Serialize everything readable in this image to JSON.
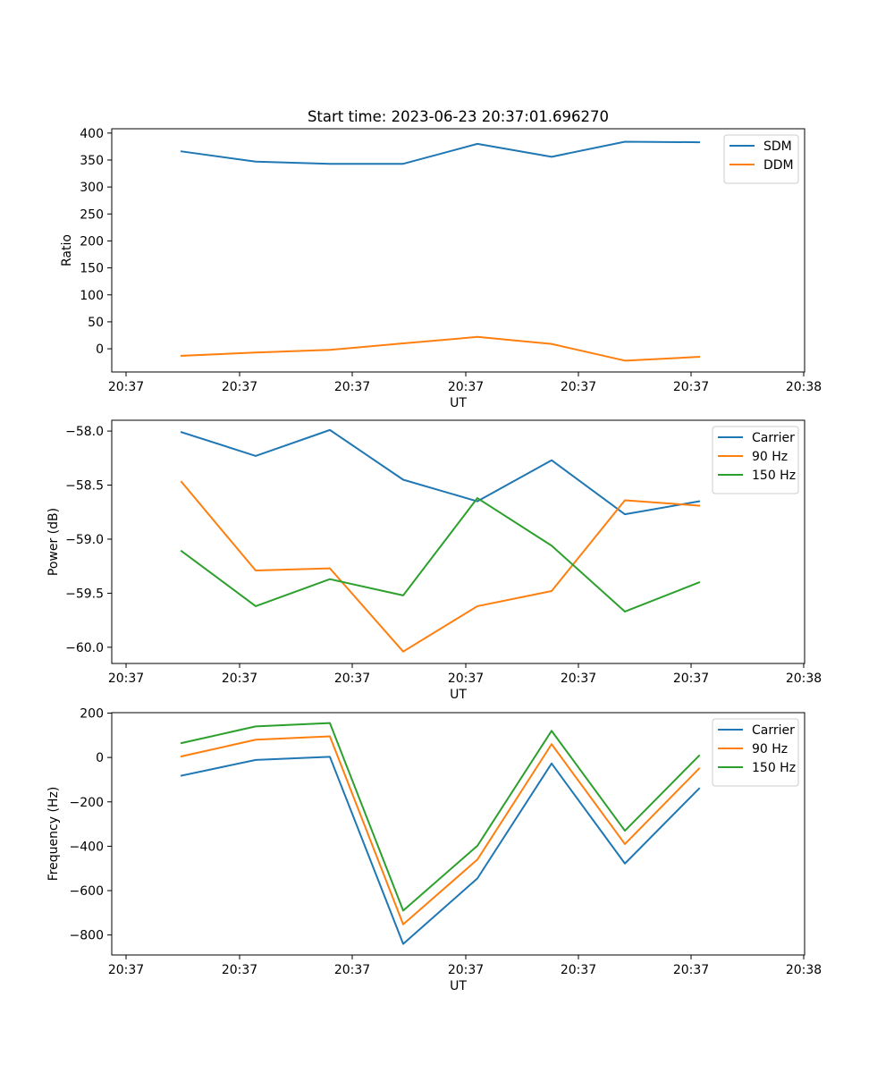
{
  "chart_data": [
    {
      "type": "line",
      "title": "Start time: 2023-06-23 20:37:01.696270",
      "xlabel": "UT",
      "ylabel": "Ratio",
      "x_tick_labels": [
        "20:37",
        "20:37",
        "20:37",
        "20:37",
        "20:37",
        "20:37",
        "20:38"
      ],
      "ylim": [
        -43,
        408
      ],
      "y_ticks": [
        0,
        50,
        100,
        150,
        200,
        250,
        300,
        350,
        400
      ],
      "grid": false,
      "legend": "top-right",
      "series": [
        {
          "name": "SDM",
          "color": "#1f77b4",
          "values": [
            366,
            347,
            343,
            343,
            380,
            356,
            384,
            383
          ]
        },
        {
          "name": "DDM",
          "color": "#ff7f0e",
          "values": [
            -13,
            -7,
            -2,
            10,
            22,
            9,
            -22,
            -15
          ]
        }
      ]
    },
    {
      "type": "line",
      "title": "",
      "xlabel": "UT",
      "ylabel": "Power (dB)",
      "x_tick_labels": [
        "20:37",
        "20:37",
        "20:37",
        "20:37",
        "20:37",
        "20:37",
        "20:38"
      ],
      "ylim": [
        -60.15,
        -57.9
      ],
      "y_ticks": [
        -60.0,
        -59.5,
        -59.0,
        -58.5,
        -58.0
      ],
      "grid": false,
      "legend": "top-right",
      "series": [
        {
          "name": "Carrier",
          "color": "#1f77b4",
          "values": [
            -58.01,
            -58.23,
            -57.99,
            -58.45,
            -58.65,
            -58.27,
            -58.77,
            -58.65
          ]
        },
        {
          "name": "90 Hz",
          "color": "#ff7f0e",
          "values": [
            -58.47,
            -59.29,
            -59.27,
            -60.04,
            -59.62,
            -59.48,
            -58.64,
            -58.69
          ]
        },
        {
          "name": "150 Hz",
          "color": "#2ca02c",
          "values": [
            -59.11,
            -59.62,
            -59.37,
            -59.52,
            -58.62,
            -59.06,
            -59.67,
            -59.4
          ]
        }
      ]
    },
    {
      "type": "line",
      "title": "",
      "xlabel": "UT",
      "ylabel": "Frequency (Hz)",
      "x_tick_labels": [
        "20:37",
        "20:37",
        "20:37",
        "20:37",
        "20:37",
        "20:37",
        "20:38"
      ],
      "ylim": [
        -890,
        202
      ],
      "y_ticks": [
        -800,
        -600,
        -400,
        -200,
        0,
        200
      ],
      "grid": false,
      "legend": "top-right",
      "series": [
        {
          "name": "Carrier",
          "color": "#1f77b4",
          "values": [
            -82,
            -11,
            3,
            -840,
            -545,
            -27,
            -478,
            -140
          ]
        },
        {
          "name": "90 Hz",
          "color": "#ff7f0e",
          "values": [
            5,
            80,
            95,
            -752,
            -460,
            60,
            -390,
            -50
          ]
        },
        {
          "name": "150 Hz",
          "color": "#2ca02c",
          "values": [
            65,
            140,
            155,
            -690,
            -398,
            120,
            -330,
            8
          ]
        }
      ]
    }
  ]
}
